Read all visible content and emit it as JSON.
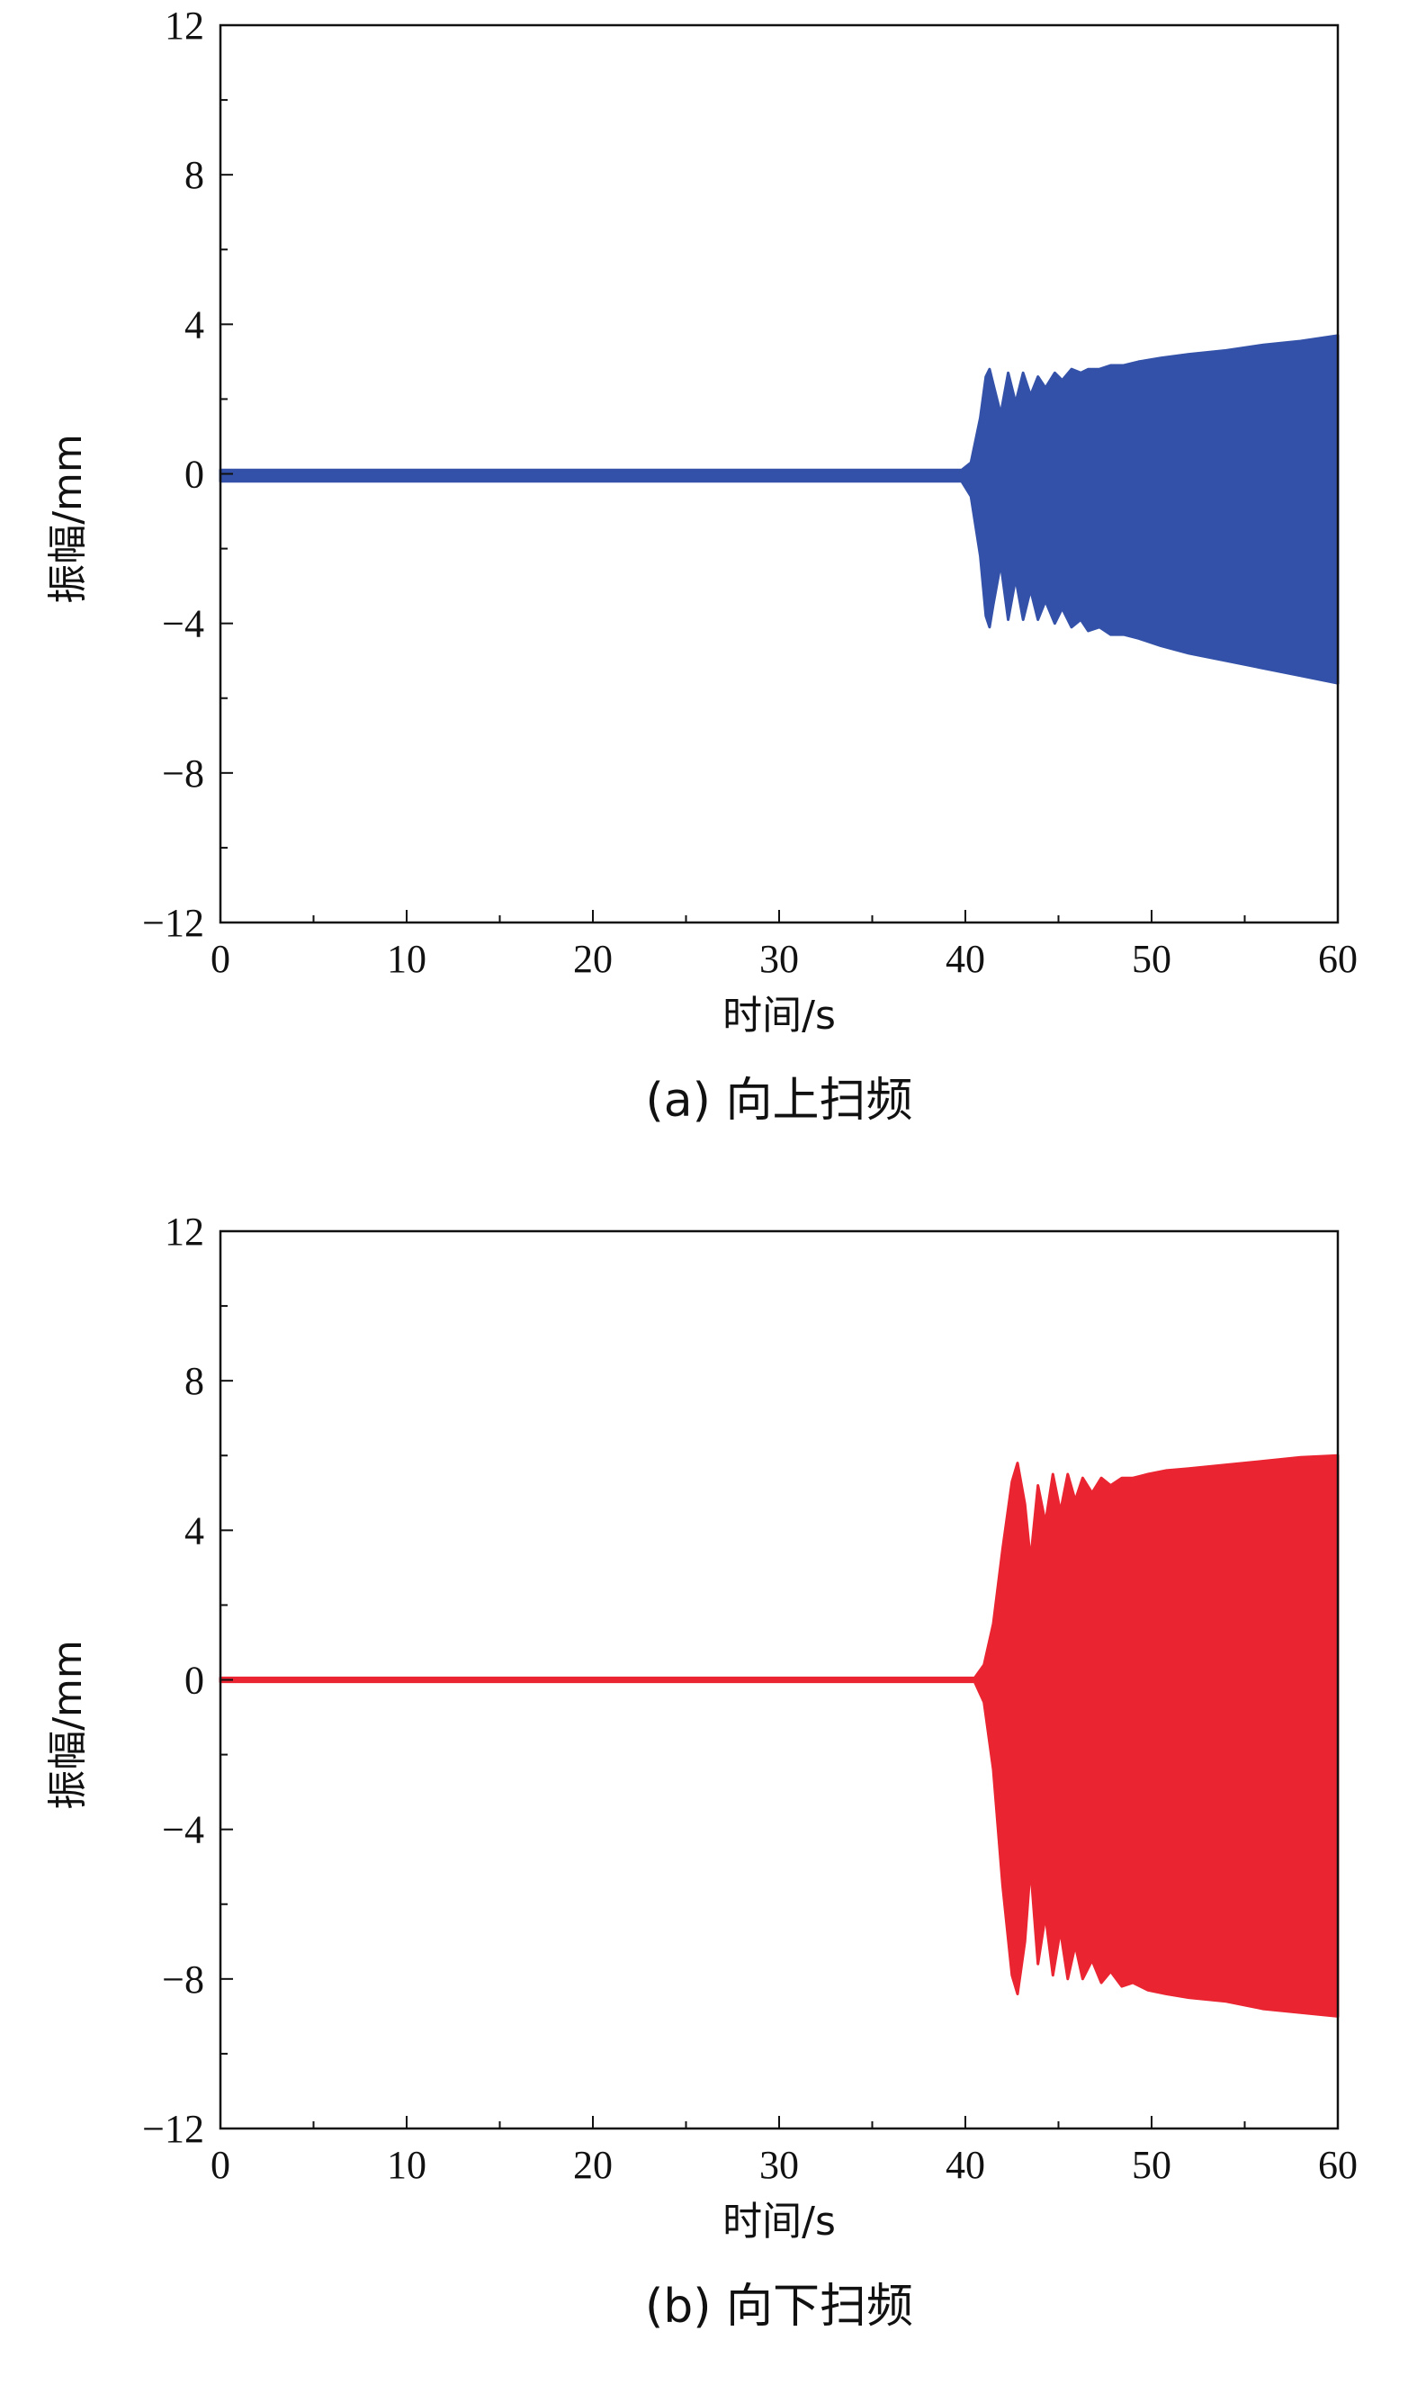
{
  "chart_data": [
    {
      "type": "area",
      "caption": "(a) 向上扫频",
      "xlabel": "时间/s",
      "ylabel": "振幅/mm",
      "xlim": [
        0,
        60
      ],
      "ylim": [
        -12,
        12
      ],
      "xticks": [
        "0",
        "10",
        "20",
        "30",
        "40",
        "50",
        "60"
      ],
      "yticks": [
        "12",
        "8",
        "4",
        "0",
        "−4",
        "−8",
        "−12"
      ],
      "grid": false,
      "color": "#3351a8",
      "series": [
        {
          "x": [
            0,
            10,
            20,
            30,
            39.8,
            40.3,
            40.8,
            41.1,
            41.3,
            41.5,
            41.9,
            42.3,
            42.7,
            43.1,
            43.5,
            43.9,
            44.3,
            44.8,
            45.2,
            45.7,
            46.2,
            46.6,
            47.2,
            47.8,
            48.5,
            49.3,
            50.5,
            52,
            54,
            56,
            58,
            60
          ],
          "upper": [
            0.1,
            0.1,
            0.1,
            0.1,
            0.1,
            0.3,
            1.5,
            2.6,
            2.8,
            2.4,
            1.6,
            2.7,
            1.9,
            2.7,
            2.1,
            2.6,
            2.3,
            2.7,
            2.5,
            2.8,
            2.7,
            2.8,
            2.8,
            2.9,
            2.9,
            3.0,
            3.1,
            3.2,
            3.3,
            3.45,
            3.55,
            3.7
          ],
          "lower": [
            -0.2,
            -0.2,
            -0.2,
            -0.2,
            -0.2,
            -0.6,
            -2.2,
            -3.8,
            -4.1,
            -3.5,
            -2.4,
            -3.9,
            -2.8,
            -3.9,
            -3.1,
            -3.9,
            -3.4,
            -4.0,
            -3.6,
            -4.1,
            -3.9,
            -4.2,
            -4.1,
            -4.3,
            -4.3,
            -4.4,
            -4.6,
            -4.8,
            -5.0,
            -5.2,
            -5.4,
            -5.6
          ]
        }
      ]
    },
    {
      "type": "area",
      "caption": "(b) 向下扫频",
      "xlabel": "时间/s",
      "ylabel": "振幅/mm",
      "xlim": [
        0,
        60
      ],
      "ylim": [
        -12,
        12
      ],
      "xticks": [
        "0",
        "10",
        "20",
        "30",
        "40",
        "50",
        "60"
      ],
      "yticks": [
        "12",
        "8",
        "4",
        "0",
        "−4",
        "−8",
        "−12"
      ],
      "grid": false,
      "color": "#ea2430",
      "series": [
        {
          "x": [
            0,
            10,
            20,
            30,
            40.5,
            41.0,
            41.5,
            42.0,
            42.5,
            42.8,
            43.2,
            43.5,
            43.9,
            44.3,
            44.7,
            45.1,
            45.5,
            45.9,
            46.3,
            46.8,
            47.3,
            47.8,
            48.4,
            49.0,
            49.8,
            50.8,
            52,
            54,
            56,
            58,
            60
          ],
          "upper": [
            0.05,
            0.05,
            0.05,
            0.05,
            0.05,
            0.4,
            1.5,
            3.5,
            5.3,
            5.8,
            4.7,
            3.2,
            5.2,
            4.2,
            5.5,
            4.5,
            5.5,
            4.8,
            5.4,
            5.0,
            5.4,
            5.2,
            5.4,
            5.4,
            5.5,
            5.6,
            5.65,
            5.75,
            5.85,
            5.95,
            6.0
          ],
          "lower": [
            -0.05,
            -0.05,
            -0.05,
            -0.05,
            -0.05,
            -0.6,
            -2.4,
            -5.5,
            -7.9,
            -8.4,
            -7.0,
            -5.0,
            -7.6,
            -6.3,
            -7.9,
            -6.7,
            -8.0,
            -7.1,
            -8.0,
            -7.5,
            -8.1,
            -7.8,
            -8.2,
            -8.1,
            -8.3,
            -8.4,
            -8.5,
            -8.6,
            -8.8,
            -8.9,
            -9.0
          ]
        }
      ]
    }
  ]
}
